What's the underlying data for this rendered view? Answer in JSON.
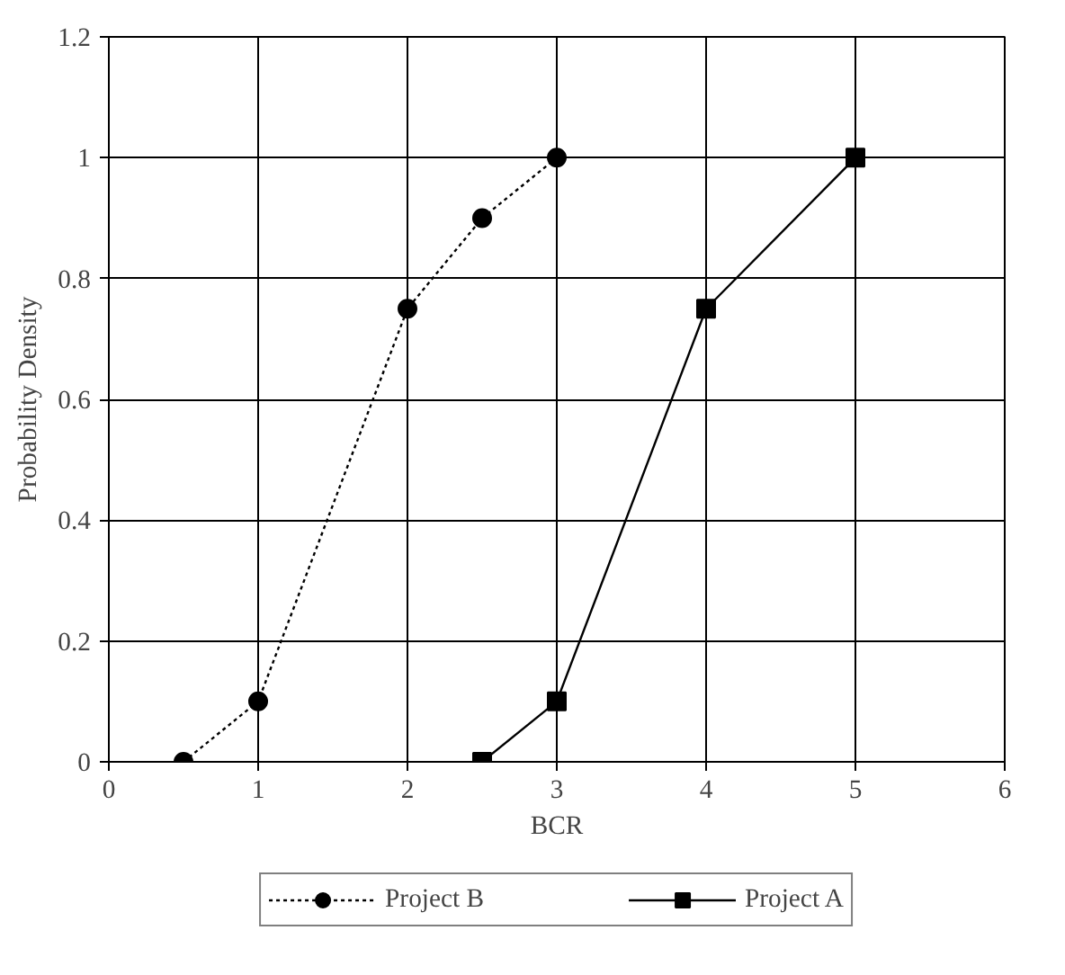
{
  "chart_data": {
    "type": "line",
    "xlabel": "BCR",
    "ylabel": "Probability Density",
    "xlim": [
      0,
      6
    ],
    "xticks": [
      0,
      1,
      2,
      3,
      4,
      5,
      6
    ],
    "ylim": [
      0,
      1.2
    ],
    "yticks": [
      0,
      0.2,
      0.4,
      0.6,
      0.8,
      1,
      1.2
    ],
    "grid": true,
    "legend": "bottom",
    "series": [
      {
        "name": "Project B",
        "color": "#000000",
        "x": [
          0.5,
          1,
          2,
          2.5,
          3
        ],
        "values": [
          0,
          0.1,
          0.75,
          0.9,
          1
        ],
        "marker": "circle",
        "line_style": "dotted"
      },
      {
        "name": "Project A",
        "color": "#000000",
        "x": [
          2.5,
          3,
          4,
          5
        ],
        "values": [
          0,
          0.1,
          0.75,
          1
        ],
        "marker": "square",
        "line_style": "solid"
      }
    ]
  }
}
